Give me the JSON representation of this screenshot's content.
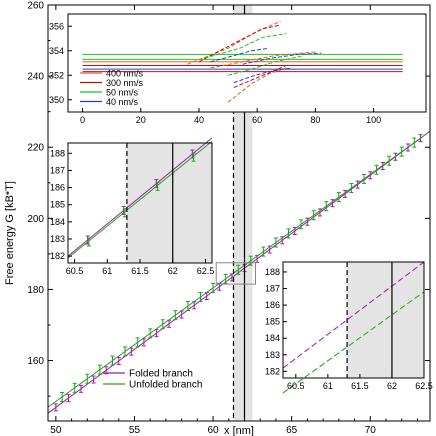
{
  "chart_data": [
    {
      "type": "line",
      "panel": "main",
      "xlabel": "x [nm]",
      "ylabel": "Free energy G [kB*T]",
      "xlim": [
        49.5,
        73.8
      ],
      "ylim": [
        143,
        260
      ],
      "xticks": [
        "50",
        "55",
        "60",
        "65",
        "70"
      ],
      "yticks": [
        "160",
        "180",
        "200",
        "220",
        "240",
        "260"
      ],
      "xtick_values": [
        50,
        55,
        60,
        65,
        70
      ],
      "ytick_values": [
        160,
        180,
        200,
        220,
        240,
        260
      ],
      "series": [
        {
          "name": "Folded branch",
          "color": "#a020a0",
          "x": [
            49.5,
            73.8
          ],
          "y": [
            145.2,
            224.5
          ]
        },
        {
          "name": "Unfolded branch",
          "color": "#20a020",
          "x": [
            49.5,
            73.8
          ],
          "y": [
            146.9,
            224.5
          ]
        }
      ],
      "vlines": [
        {
          "x": 61.3,
          "style": "dashed",
          "color": "#000000"
        },
        {
          "x": 62.0,
          "style": "solid",
          "color": "#000000"
        }
      ],
      "shaded_band": [
        61.3,
        62.5
      ],
      "legend_position": "bottom-left",
      "grid": false
    },
    {
      "type": "line",
      "panel": "top-inset",
      "xlim": [
        -5,
        118
      ],
      "ylim": [
        349,
        357
      ],
      "xticks": [
        "0",
        "20",
        "40",
        "60",
        "80",
        "100"
      ],
      "yticks": [
        "350",
        "352",
        "354",
        "356"
      ],
      "xtick_values": [
        0,
        20,
        40,
        60,
        80,
        100
      ],
      "ytick_values": [
        350,
        352,
        354,
        356
      ],
      "series": [
        {
          "name": "400 nm/s",
          "color": "#e86020"
        },
        {
          "name": "300 nm/s",
          "color": "#c01010"
        },
        {
          "name": "50 nm/s",
          "color": "#20c020"
        },
        {
          "name": "40 nm/s",
          "color": "#2040d0"
        }
      ],
      "legend_position": "bottom-left"
    },
    {
      "type": "line",
      "panel": "upper-left-inset",
      "xlim": [
        60.4,
        62.6
      ],
      "ylim": [
        181.6,
        188.6
      ],
      "xticks": [
        "60.5",
        "61",
        "61.5",
        "62",
        "62.5"
      ],
      "yticks": [
        "182",
        "183",
        "184",
        "185",
        "186",
        "187",
        "188"
      ],
      "xtick_values": [
        60.5,
        61,
        61.5,
        62,
        62.5
      ],
      "ytick_values": [
        182,
        183,
        184,
        185,
        186,
        187,
        188
      ],
      "series": [
        {
          "name": "Folded branch",
          "color": "#a020a0",
          "x": [
            60.4,
            62.6
          ],
          "y": [
            182.0,
            188.9
          ]
        },
        {
          "name": "Unfolded branch",
          "color": "#20a020",
          "x": [
            60.4,
            62.6
          ],
          "y": [
            181.9,
            188.7
          ]
        }
      ],
      "vlines": [
        {
          "x": 61.3,
          "style": "dashed"
        },
        {
          "x": 62.0,
          "style": "solid"
        }
      ],
      "shaded_band": [
        61.3,
        62.6
      ]
    },
    {
      "type": "line",
      "panel": "lower-right-inset",
      "xlim": [
        60.3,
        62.5
      ],
      "ylim": [
        181.6,
        188.6
      ],
      "xticks": [
        "60.5",
        "61",
        "61.5",
        "62",
        "62.5"
      ],
      "yticks": [
        "182",
        "183",
        "184",
        "185",
        "186",
        "187",
        "188"
      ],
      "xtick_values": [
        60.5,
        61,
        61.5,
        62,
        62.5
      ],
      "ytick_values": [
        182,
        183,
        184,
        185,
        186,
        187,
        188
      ],
      "series": [
        {
          "name": "Folded branch",
          "color": "#a020a0",
          "x": [
            60.3,
            62.5
          ],
          "y": [
            182.2,
            188.6
          ]
        },
        {
          "name": "Unfolded branch",
          "color": "#20a020",
          "x": [
            60.3,
            62.5
          ],
          "y": [
            180.7,
            186.8
          ]
        }
      ],
      "vlines": [
        {
          "x": 61.3,
          "style": "dashed"
        },
        {
          "x": 62.0,
          "style": "solid"
        }
      ],
      "shaded_band": [
        61.3,
        62.5
      ]
    }
  ]
}
